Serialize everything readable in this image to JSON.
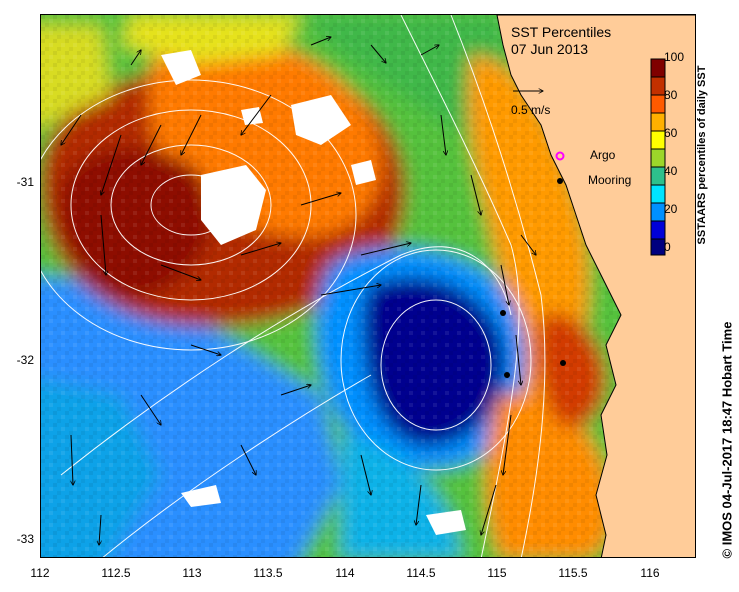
{
  "map": {
    "title": "SST Percentiles",
    "date": "07 Jun 2013",
    "reference_vector_label": "0.5 m/s",
    "legend": {
      "argo_label": "Argo",
      "mooring_label": "Mooring"
    },
    "colorbar": {
      "label": "SSTAARS percentiles of daily SST",
      "ticks": [
        "100",
        "80",
        "60",
        "40",
        "20",
        "0"
      ],
      "colors": [
        "#00007f",
        "#0000d8",
        "#0090ff",
        "#00e4ff",
        "#2dc08c",
        "#9cd62a",
        "#ffff00",
        "#ffb000",
        "#ff5a00",
        "#c23000",
        "#7f0000"
      ]
    },
    "x_axis": {
      "ticks": [
        "112",
        "112.5",
        "113",
        "113.5",
        "114",
        "114.5",
        "115",
        "115.5",
        "116"
      ]
    },
    "y_axis": {
      "ticks": [
        "-31",
        "-32",
        "-33"
      ]
    },
    "land_color": "#ffcc99",
    "credit": "© IMOS 04-Jul-2017 18:47 Hobart Time"
  }
}
